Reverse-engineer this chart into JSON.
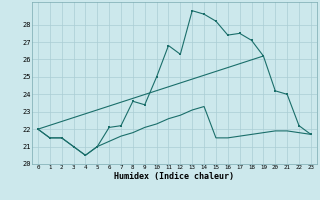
{
  "xlabel": "Humidex (Indice chaleur)",
  "background_color": "#cce8ec",
  "grid_color": "#aacdd4",
  "line_color": "#1a6e6a",
  "x": [
    0,
    1,
    2,
    3,
    4,
    5,
    6,
    7,
    8,
    9,
    10,
    11,
    12,
    13,
    14,
    15,
    16,
    17,
    18,
    19,
    20,
    21,
    22,
    23
  ],
  "line1": [
    22.0,
    21.5,
    21.5,
    21.0,
    20.5,
    21.0,
    22.1,
    22.2,
    23.6,
    23.4,
    25.0,
    26.8,
    26.3,
    28.8,
    28.6,
    28.2,
    27.4,
    27.5,
    27.1,
    26.2,
    null,
    null,
    null,
    null
  ],
  "line2": [
    22.0,
    null,
    null,
    null,
    null,
    null,
    null,
    null,
    null,
    null,
    null,
    null,
    null,
    null,
    null,
    null,
    null,
    null,
    null,
    26.2,
    24.2,
    24.0,
    22.2,
    21.7
  ],
  "line3": [
    22.0,
    21.5,
    21.5,
    21.0,
    20.5,
    21.0,
    21.3,
    21.6,
    21.8,
    22.1,
    22.3,
    22.6,
    22.8,
    23.1,
    23.3,
    21.5,
    21.5,
    21.6,
    21.7,
    21.8,
    21.9,
    21.9,
    21.8,
    21.7
  ],
  "ylim": [
    20,
    29
  ],
  "xlim": [
    -0.5,
    23.5
  ],
  "yticks": [
    20,
    21,
    22,
    23,
    24,
    25,
    26,
    27,
    28
  ],
  "xticks": [
    0,
    1,
    2,
    3,
    4,
    5,
    6,
    7,
    8,
    9,
    10,
    11,
    12,
    13,
    14,
    15,
    16,
    17,
    18,
    19,
    20,
    21,
    22,
    23
  ]
}
